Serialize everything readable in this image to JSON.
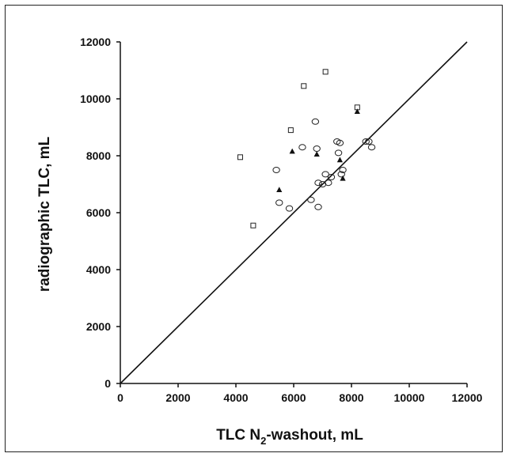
{
  "chart_data": {
    "type": "scatter",
    "title": "",
    "xlabel": "TLC N₂-washout, mL",
    "xlabel_main": "TLC N",
    "xlabel_sub": "2",
    "xlabel_rest": "-washout, mL",
    "ylabel": "radiographic TLC, mL",
    "xlim": [
      0,
      12000
    ],
    "ylim": [
      0,
      12000
    ],
    "xticks": [
      "0",
      "2000",
      "4000",
      "6000",
      "8000",
      "10000",
      "12000"
    ],
    "yticks": [
      "0",
      "2000",
      "4000",
      "6000",
      "8000",
      "10000",
      "12000"
    ],
    "grid": false,
    "identity_line": {
      "from": [
        0,
        0
      ],
      "to": [
        12000,
        12000
      ]
    },
    "series": [
      {
        "marker": "square",
        "x": [
          4150,
          4600,
          5900,
          6350,
          7100,
          8200
        ],
        "y": [
          7950,
          5550,
          8900,
          10450,
          10950,
          9700
        ]
      },
      {
        "marker": "circle",
        "x": [
          5400,
          5500,
          5850,
          6300,
          6600,
          6750,
          6800,
          6850,
          6850,
          7000,
          7100,
          7200,
          7300,
          7500,
          7550,
          7600,
          7650,
          7700,
          8500,
          8600,
          8700
        ],
        "y": [
          7500,
          6350,
          6150,
          8300,
          6450,
          9200,
          8250,
          7050,
          6200,
          7000,
          7350,
          7050,
          7250,
          8500,
          8100,
          8450,
          7350,
          7500,
          8500,
          8500,
          8300
        ]
      },
      {
        "marker": "triangle",
        "x": [
          5500,
          5950,
          6800,
          7600,
          7700,
          8200
        ],
        "y": [
          6800,
          8150,
          8050,
          7850,
          7200,
          9550
        ]
      }
    ]
  }
}
